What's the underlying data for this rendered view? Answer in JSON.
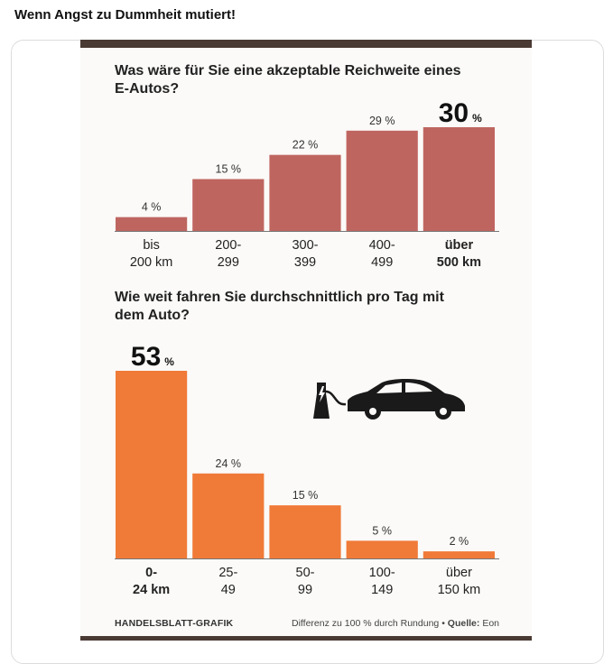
{
  "post": {
    "title": "Wenn Angst zu Dummheit mutiert!"
  },
  "colors": {
    "range_bar": "#bf6560",
    "distance_bar": "#f07a38",
    "dark_bar": "#4a3a34"
  },
  "chart_data": [
    {
      "type": "bar",
      "title": "Was wäre für Sie eine akzeptable Reichweite eines E-Autos?",
      "categories": [
        {
          "line1": "bis",
          "line2": "200 km"
        },
        {
          "line1": "200-",
          "line2": "299"
        },
        {
          "line1": "300-",
          "line2": "399"
        },
        {
          "line1": "400-",
          "line2": "499"
        },
        {
          "line1": "über",
          "line2": "500 km"
        }
      ],
      "values": [
        4,
        15,
        22,
        29,
        30
      ],
      "labels": [
        "4 %",
        "15 %",
        "22 %",
        "29 %",
        "30"
      ],
      "highlight_index": 4,
      "highlight_suffix": "%",
      "ylim": [
        0,
        30
      ]
    },
    {
      "type": "bar",
      "title": "Wie weit fahren Sie durchschnittlich pro Tag mit dem Auto?",
      "categories": [
        {
          "line1": "0-",
          "line2": "24 km"
        },
        {
          "line1": "25-",
          "line2": "49"
        },
        {
          "line1": "50-",
          "line2": "99"
        },
        {
          "line1": "100-",
          "line2": "149"
        },
        {
          "line1": "über",
          "line2": "150 km"
        }
      ],
      "values": [
        53,
        24,
        15,
        5,
        2
      ],
      "labels": [
        "53",
        "24 %",
        "15 %",
        "5 %",
        "2 %"
      ],
      "highlight_index": 0,
      "highlight_suffix": "%",
      "ylim": [
        0,
        53
      ]
    }
  ],
  "footer": {
    "left": "HANDELSBLATT-GRAFIK",
    "note": "Differenz zu 100 % durch Rundung",
    "bullet": "•",
    "source_label": "Quelle:",
    "source": "Eon"
  },
  "icons": {
    "illustration": "ev-charging-car-icon"
  }
}
